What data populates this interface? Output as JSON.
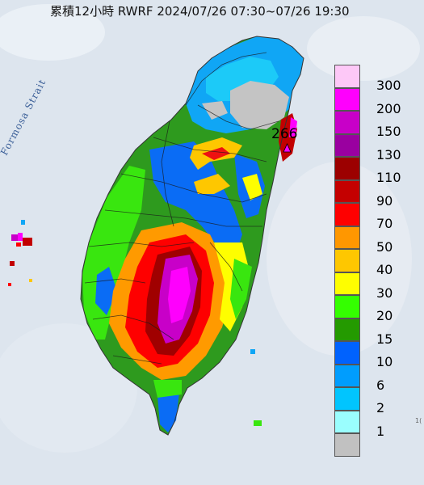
{
  "title": "累積12小時 RWRF 2024/07/26 07:30~07/26 19:30",
  "strait_label": "Formosa Strait",
  "max_value_label": "266",
  "legend": [
    {
      "label": "300",
      "color": "#fdc8f7"
    },
    {
      "label": "200",
      "color": "#fe00fd"
    },
    {
      "label": "150",
      "color": "#c800c8"
    },
    {
      "label": "130",
      "color": "#9a00a0"
    },
    {
      "label": "110",
      "color": "#9c0000"
    },
    {
      "label": "90",
      "color": "#c40000"
    },
    {
      "label": "70",
      "color": "#fe0000"
    },
    {
      "label": "50",
      "color": "#ff9700"
    },
    {
      "label": "40",
      "color": "#fec700"
    },
    {
      "label": "30",
      "color": "#fefe00"
    },
    {
      "label": "20",
      "color": "#34ff00"
    },
    {
      "label": "15",
      "color": "#249a00"
    },
    {
      "label": "10",
      "color": "#0062fe"
    },
    {
      "label": "6",
      "color": "#009dfe"
    },
    {
      "label": "2",
      "color": "#01c5fe"
    },
    {
      "label": "1",
      "color": "#9afefe"
    },
    {
      "label": "",
      "color": "#c1c1c1"
    }
  ],
  "edge_mark": "1("
}
